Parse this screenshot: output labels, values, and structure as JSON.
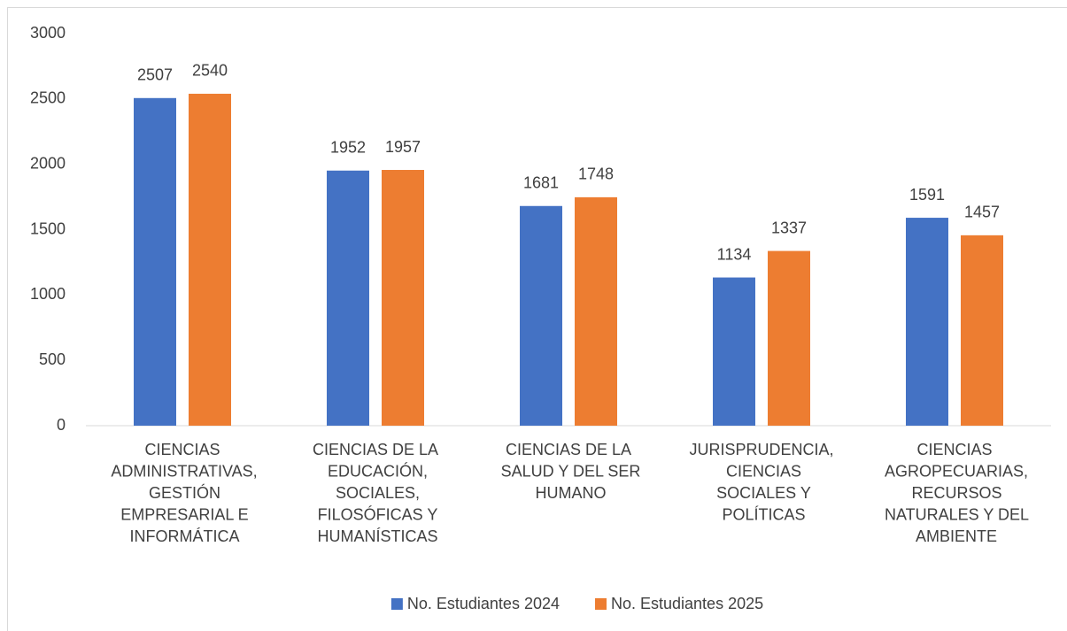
{
  "chart_data": {
    "type": "bar",
    "categories": [
      "CIENCIAS ADMINISTRATIVAS, GESTIÓN EMPRESARIAL E INFORMÁTICA",
      "CIENCIAS DE LA EDUCACIÓN, SOCIALES, FILOSÓFICAS Y HUMANÍSTICAS",
      "CIENCIAS DE LA SALUD Y DEL SER HUMANO",
      "JURISPRUDENCIA, CIENCIAS SOCIALES Y POLÍTICAS",
      "CIENCIAS AGROPECUARIAS, RECURSOS NATURALES Y DEL AMBIENTE"
    ],
    "series": [
      {
        "name": "No. Estudiantes 2024",
        "color": "#4472c4",
        "values": [
          2507,
          1952,
          1681,
          1134,
          1591
        ]
      },
      {
        "name": "No. Estudiantes 2025",
        "color": "#ed7d31",
        "values": [
          2540,
          1957,
          1748,
          1337,
          1457
        ]
      }
    ],
    "ylim": [
      0,
      3000
    ],
    "yticks": [
      0,
      500,
      1000,
      1500,
      2000,
      2500,
      3000
    ],
    "grid": false,
    "legend": "bottom"
  }
}
